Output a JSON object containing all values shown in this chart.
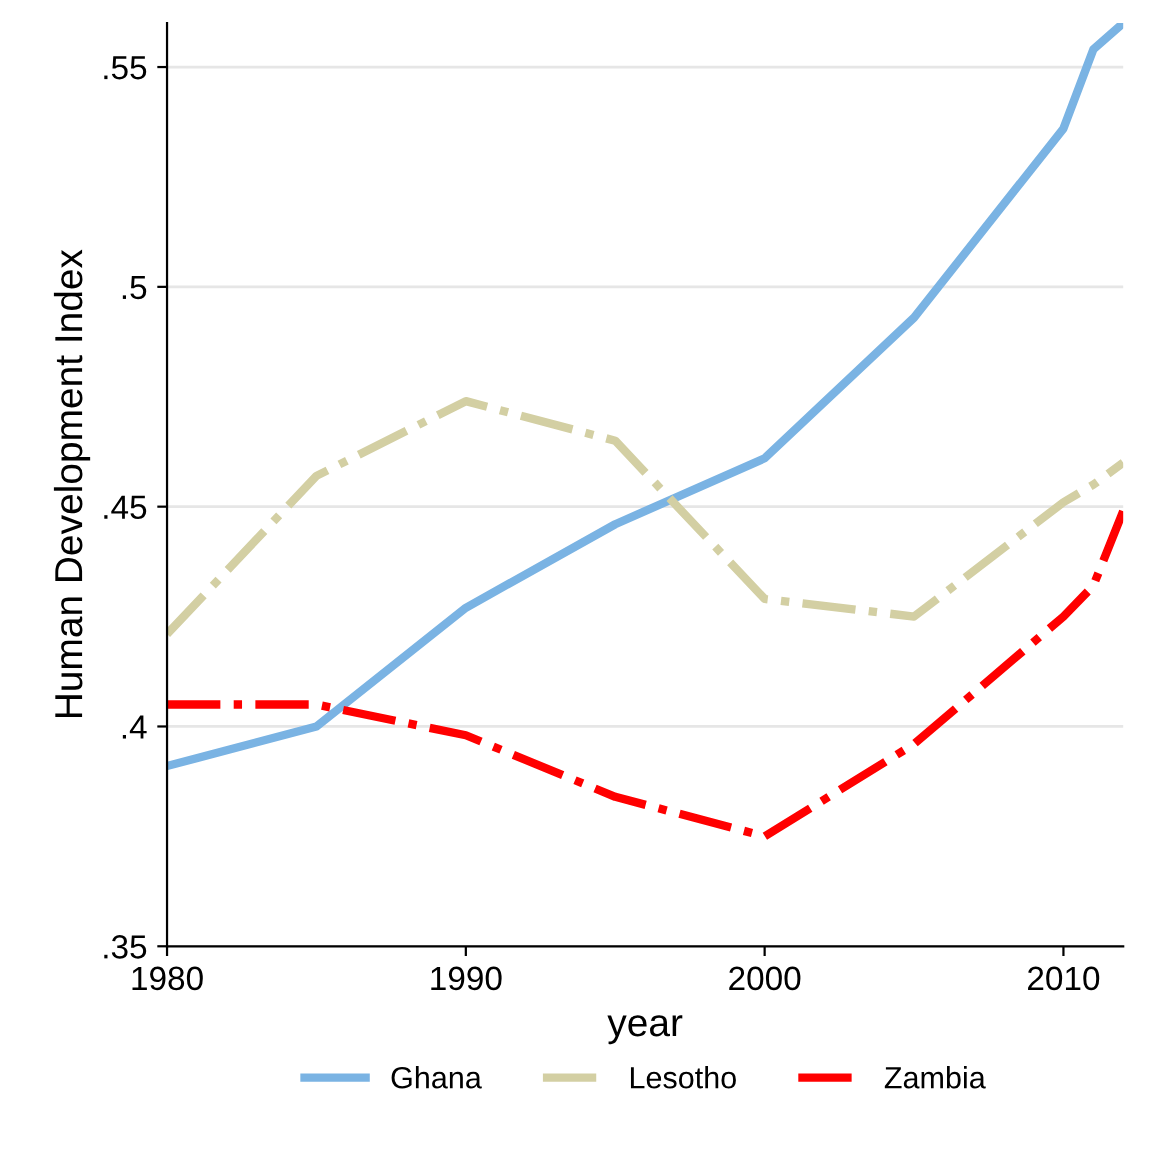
{
  "chart_data": {
    "type": "line",
    "xlabel": "year",
    "ylabel": "Human Development Index",
    "x": [
      1980,
      1985,
      1990,
      1995,
      2000,
      2005,
      2010,
      2011,
      2012
    ],
    "series": [
      {
        "name": "Ghana",
        "color": "#7ab3e3",
        "line_style": "solid",
        "values": [
          0.391,
          0.4,
          0.427,
          0.446,
          0.461,
          0.493,
          0.536,
          0.554,
          0.56
        ]
      },
      {
        "name": "Lesotho",
        "color": "#d3cfa3",
        "line_style": "dashdot",
        "values": [
          0.421,
          0.457,
          0.474,
          0.465,
          0.429,
          0.425,
          0.451,
          0.455,
          0.46
        ]
      },
      {
        "name": "Zambia",
        "color": "#ff0000",
        "line_style": "dashdot",
        "values": [
          0.405,
          0.405,
          0.398,
          0.384,
          0.375,
          0.396,
          0.425,
          0.432,
          0.449
        ]
      }
    ],
    "xlim": [
      1980,
      2012
    ],
    "xticks": [
      1980,
      1990,
      2000,
      2010
    ],
    "ylim": [
      0.35,
      0.56
    ],
    "yticks": [
      {
        "value": 0.35,
        "label": ".35"
      },
      {
        "value": 0.4,
        "label": ".4"
      },
      {
        "value": 0.45,
        "label": ".45"
      },
      {
        "value": 0.5,
        "label": ".5"
      },
      {
        "value": 0.55,
        "label": ".55"
      }
    ],
    "grid": "y",
    "legend": "bottom",
    "marker": "none"
  }
}
